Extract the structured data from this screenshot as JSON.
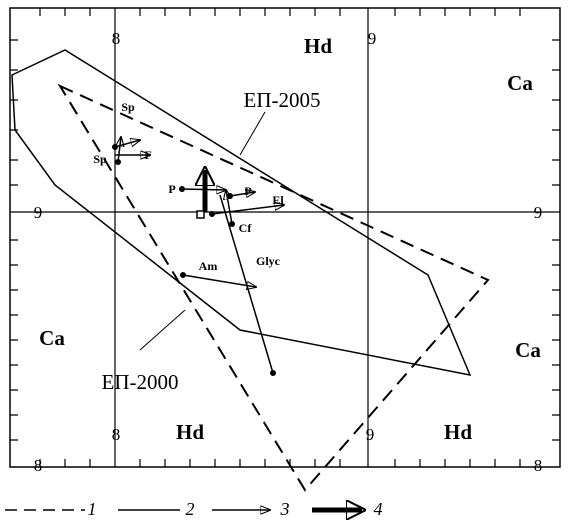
{
  "axis_labels": {
    "top": [
      "8",
      "9"
    ],
    "left": [
      "9",
      "8"
    ],
    "right": [
      "9",
      "8"
    ],
    "bottom": [
      "8",
      "9"
    ]
  },
  "region_labels": [
    "Hd",
    "Ca",
    "Ca",
    "Ca",
    "Hd",
    "Hd"
  ],
  "polygon_labels": [
    "ЕП-2005",
    "ЕП-2000"
  ],
  "point_labels": [
    "Sp",
    "Sp",
    "F",
    "P",
    "P",
    "El",
    "Cf",
    "Am",
    "Glyc"
  ],
  "legend": [
    "1",
    "2",
    "3",
    "4"
  ]
}
